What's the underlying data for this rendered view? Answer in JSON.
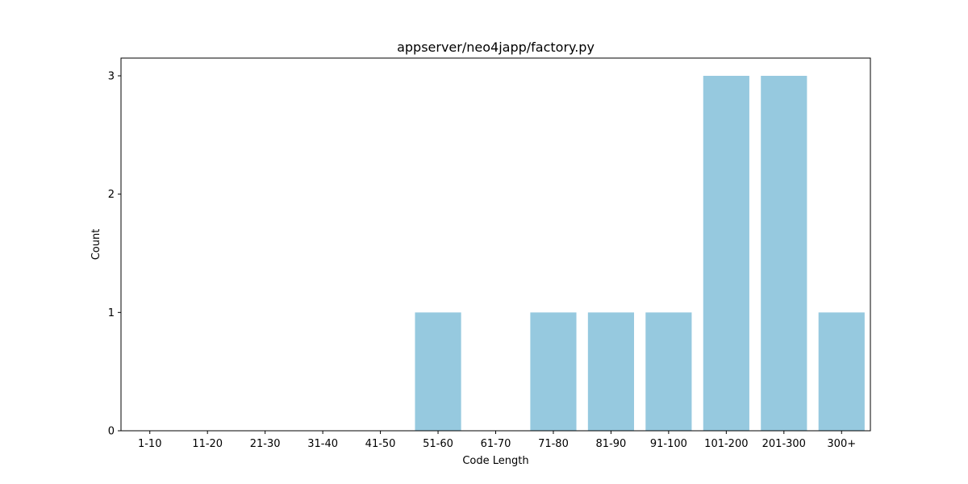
{
  "chart_data": {
    "type": "bar",
    "title": "appserver/neo4japp/factory.py",
    "xlabel": "Code Length",
    "ylabel": "Count",
    "categories": [
      "1-10",
      "11-20",
      "21-30",
      "31-40",
      "41-50",
      "51-60",
      "61-70",
      "71-80",
      "81-90",
      "91-100",
      "101-200",
      "201-300",
      "300+"
    ],
    "values": [
      0,
      0,
      0,
      0,
      0,
      1,
      0,
      1,
      1,
      1,
      3,
      3,
      1
    ],
    "yticks": [
      "0",
      "1",
      "2",
      "3"
    ],
    "ylim": [
      0,
      3.15
    ],
    "grid": false,
    "legend": "none",
    "bar_color": "#96c9df"
  }
}
